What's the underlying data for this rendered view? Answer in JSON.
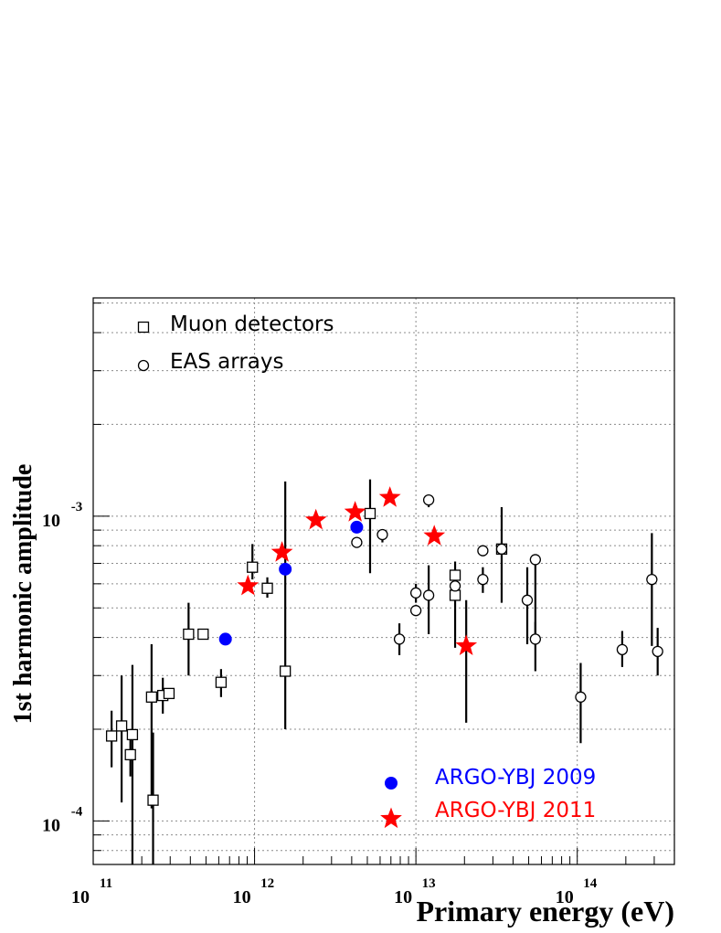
{
  "chart_data": {
    "type": "scatter",
    "xlabel": "Primary energy (eV)",
    "ylabel": "1st harmonic amplitude",
    "xscale": "log",
    "yscale": "log",
    "xlim": [
      100000000000.0,
      400000000000000.0
    ],
    "ylim": [
      7.2e-05,
      0.0052
    ],
    "grid": true,
    "x_ticks": [
      {
        "base": "10",
        "exp": "11",
        "value": 100000000000.0
      },
      {
        "base": "10",
        "exp": "12",
        "value": 1000000000000.0
      },
      {
        "base": "10",
        "exp": "13",
        "value": 10000000000000.0
      },
      {
        "base": "10",
        "exp": "14",
        "value": 100000000000000.0
      }
    ],
    "y_ticks": [
      {
        "base": "10",
        "exp": "-4",
        "value": 0.0001
      },
      {
        "base": "10",
        "exp": "-3",
        "value": 0.001
      }
    ],
    "legend_top": [
      {
        "label": "Muon detectors",
        "marker": "open-square"
      },
      {
        "label": "EAS arrays",
        "marker": "open-circle"
      }
    ],
    "legend_bottom": [
      {
        "label": "ARGO-YBJ 2009",
        "marker": "filled-circle",
        "color": "#0000ff"
      },
      {
        "label": "ARGO-YBJ 2011",
        "marker": "star",
        "color": "#ff0000"
      }
    ],
    "colors": {
      "muon": "#000000",
      "eas": "#000000",
      "argo2009": "#0000ff",
      "argo2011": "#ff0000",
      "grid": "#8c8c8c"
    },
    "series": [
      {
        "name": "Muon detectors",
        "marker": "open-square",
        "points": [
          {
            "x": 130000000000.0,
            "y": 0.00019,
            "ylo": 0.00015,
            "yhi": 0.00023
          },
          {
            "x": 150000000000.0,
            "y": 0.000205,
            "ylo": 0.000115,
            "yhi": 0.0003
          },
          {
            "x": 170000000000.0,
            "y": 0.000165,
            "ylo": 0.00014,
            "yhi": 0.0002
          },
          {
            "x": 175000000000.0,
            "y": 0.000192,
            "ylo": 7.2e-05,
            "yhi": 0.000325
          },
          {
            "x": 230000000000.0,
            "y": 0.000255,
            "ylo": 0.00011,
            "yhi": 0.00038
          },
          {
            "x": 235000000000.0,
            "y": 0.000117,
            "ylo": 7.2e-05,
            "yhi": 0.000195
          },
          {
            "x": 270000000000.0,
            "y": 0.000258,
            "ylo": 0.000225,
            "yhi": 0.000295
          },
          {
            "x": 295000000000.0,
            "y": 0.000262,
            "ylo": 0.000262,
            "yhi": 0.000262
          },
          {
            "x": 390000000000.0,
            "y": 0.00041,
            "ylo": 0.0003,
            "yhi": 0.00052
          },
          {
            "x": 480000000000.0,
            "y": 0.00041,
            "ylo": 0.00041,
            "yhi": 0.00041
          },
          {
            "x": 620000000000.0,
            "y": 0.000285,
            "ylo": 0.000255,
            "yhi": 0.000315
          },
          {
            "x": 970000000000.0,
            "y": 0.00068,
            "ylo": 0.00062,
            "yhi": 0.00081
          },
          {
            "x": 1200000000000.0,
            "y": 0.00058,
            "ylo": 0.00054,
            "yhi": 0.00063
          },
          {
            "x": 1550000000000.0,
            "y": 0.00031,
            "ylo": 0.0002,
            "yhi": 0.0013
          },
          {
            "x": 5200000000000.0,
            "y": 0.00102,
            "ylo": 0.00065,
            "yhi": 0.00132
          },
          {
            "x": 17500000000000.0,
            "y": 0.00055,
            "ylo": 0.00037,
            "yhi": 0.00071
          },
          {
            "x": 17500000000000.0,
            "y": 0.00064,
            "ylo": 0.00064,
            "yhi": 0.00064
          },
          {
            "x": 34000000000000.0,
            "y": 0.00078,
            "ylo": 0.00052,
            "yhi": 0.00107
          }
        ]
      },
      {
        "name": "EAS arrays",
        "marker": "open-circle",
        "points": [
          {
            "x": 4300000000000.0,
            "y": 0.00082,
            "ylo": 0.00082,
            "yhi": 0.00082
          },
          {
            "x": 6200000000000.0,
            "y": 0.00087,
            "ylo": 0.00082,
            "yhi": 0.00087
          },
          {
            "x": 7900000000000.0,
            "y": 0.000395,
            "ylo": 0.00035,
            "yhi": 0.000445
          },
          {
            "x": 10000000000000.0,
            "y": 0.00056,
            "ylo": 0.00052,
            "yhi": 0.0006
          },
          {
            "x": 10000000000000.0,
            "y": 0.00049,
            "ylo": 0.00049,
            "yhi": 0.00049
          },
          {
            "x": 12000000000000.0,
            "y": 0.00113,
            "ylo": 0.00107,
            "yhi": 0.00113
          },
          {
            "x": 12000000000000.0,
            "y": 0.00055,
            "ylo": 0.00041,
            "yhi": 0.00069
          },
          {
            "x": 17500000000000.0,
            "y": 0.00059,
            "ylo": 0.00059,
            "yhi": 0.00059
          },
          {
            "x": 26000000000000.0,
            "y": 0.00077,
            "ylo": 0.00077,
            "yhi": 0.00077
          },
          {
            "x": 26000000000000.0,
            "y": 0.00062,
            "ylo": 0.00056,
            "yhi": 0.00068
          },
          {
            "x": 34000000000000.0,
            "y": 0.00078,
            "ylo": 0.00078,
            "yhi": 0.00078
          },
          {
            "x": 49000000000000.0,
            "y": 0.00053,
            "ylo": 0.00038,
            "yhi": 0.00068
          },
          {
            "x": 55000000000000.0,
            "y": 0.00072,
            "ylo": 0.00039,
            "yhi": 0.00072
          },
          {
            "x": 55000000000000.0,
            "y": 0.000395,
            "ylo": 0.00031,
            "yhi": 0.00045
          },
          {
            "x": 105000000000000.0,
            "y": 0.000255,
            "ylo": 0.00018,
            "yhi": 0.00033
          },
          {
            "x": 190000000000000.0,
            "y": 0.000365,
            "ylo": 0.00032,
            "yhi": 0.00042
          },
          {
            "x": 290000000000000.0,
            "y": 0.00062,
            "ylo": 0.000375,
            "yhi": 0.00088
          },
          {
            "x": 315000000000000.0,
            "y": 0.00036,
            "ylo": 0.0003,
            "yhi": 0.00043
          }
        ]
      },
      {
        "name": "ARGO-YBJ 2009",
        "marker": "filled-circle",
        "points": [
          {
            "x": 660000000000.0,
            "y": 0.000395
          },
          {
            "x": 1550000000000.0,
            "y": 0.00067
          },
          {
            "x": 4300000000000.0,
            "y": 0.00092
          }
        ]
      },
      {
        "name": "ARGO-YBJ 2011",
        "marker": "star",
        "points": [
          {
            "x": 910000000000.0,
            "y": 0.00059,
            "ylo": 0.00059,
            "yhi": 0.00059
          },
          {
            "x": 1480000000000.0,
            "y": 0.00076,
            "ylo": 0.00076,
            "yhi": 0.00076
          },
          {
            "x": 2400000000000.0,
            "y": 0.00097,
            "ylo": 0.00097,
            "yhi": 0.00097
          },
          {
            "x": 4200000000000.0,
            "y": 0.00103,
            "ylo": 0.00103,
            "yhi": 0.00103
          },
          {
            "x": 6900000000000.0,
            "y": 0.00115,
            "ylo": 0.00115,
            "yhi": 0.00115
          },
          {
            "x": 13000000000000.0,
            "y": 0.00086,
            "ylo": 0.00086,
            "yhi": 0.00086
          },
          {
            "x": 20500000000000.0,
            "y": 0.000375,
            "ylo": 0.00021,
            "yhi": 0.00053
          }
        ]
      }
    ]
  }
}
